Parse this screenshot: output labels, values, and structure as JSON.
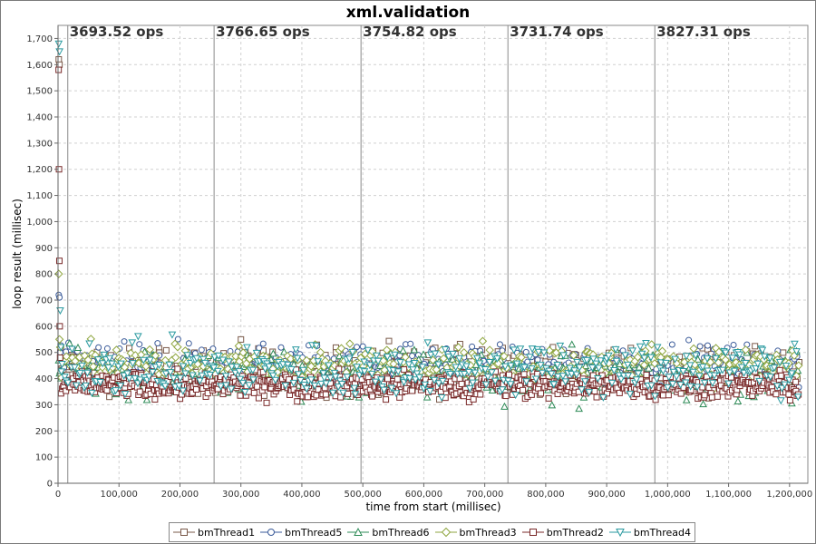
{
  "chart_data": {
    "type": "scatter",
    "title": "xml.validation",
    "xlabel": "time from start (millisec)",
    "ylabel": "loop result (millisec)",
    "xlim": [
      0,
      1230000
    ],
    "ylim": [
      0,
      1750
    ],
    "x_ticks": [
      0,
      100000,
      200000,
      300000,
      400000,
      500000,
      600000,
      700000,
      800000,
      900000,
      1000000,
      1100000,
      1200000
    ],
    "x_tick_labels": [
      "0",
      "100,000",
      "200,000",
      "300,000",
      "400,000",
      "500,000",
      "600,000",
      "700,000",
      "800,000",
      "900,000",
      "1,000,000",
      "1,100,000",
      "1,200,000"
    ],
    "y_ticks": [
      0,
      100,
      200,
      300,
      400,
      500,
      600,
      700,
      800,
      900,
      1000,
      1100,
      1200,
      1300,
      1400,
      1500,
      1600,
      1700
    ],
    "y_tick_labels": [
      "0",
      "100",
      "200",
      "300",
      "400",
      "500",
      "600",
      "700",
      "800",
      "900",
      "1,000",
      "1,100",
      "1,200",
      "1,300",
      "1,400",
      "1,500",
      "1,600",
      "1,700"
    ],
    "grid": true,
    "legend_position": "bottom",
    "phase_markers": [
      {
        "x": 16000,
        "label": "3693.52 ops"
      },
      {
        "x": 256000,
        "label": "3766.65 ops"
      },
      {
        "x": 497000,
        "label": "3754.82 ops"
      },
      {
        "x": 738000,
        "label": "3731.74 ops"
      },
      {
        "x": 979000,
        "label": "3827.31 ops"
      }
    ],
    "series": [
      {
        "name": "bmThread1",
        "marker": "square",
        "color": "#7a5a4a",
        "startup": [
          [
            1200,
            1620
          ],
          [
            2400,
            1600
          ],
          [
            3600,
            500
          ],
          [
            4800,
            520
          ]
        ],
        "band": [
          300,
          560
        ],
        "x_range": [
          5000,
          1215000
        ],
        "step": 2000
      },
      {
        "name": "bmThread5",
        "marker": "circle",
        "color": "#3a5a99",
        "startup": [
          [
            1200,
            720
          ],
          [
            2400,
            710
          ],
          [
            3600,
            500
          ],
          [
            4800,
            480
          ]
        ],
        "band": [
          330,
          570
        ],
        "x_range": [
          5000,
          1215000
        ],
        "step": 2800
      },
      {
        "name": "bmThread6",
        "marker": "triangle-up",
        "color": "#2e8b57",
        "startup": [
          [
            1200,
            470
          ],
          [
            2400,
            420
          ],
          [
            3600,
            430
          ]
        ],
        "band": [
          270,
          560
        ],
        "x_range": [
          5000,
          1215000
        ],
        "step": 3000
      },
      {
        "name": "bmThread3",
        "marker": "diamond",
        "color": "#8fa640",
        "startup": [
          [
            1200,
            800
          ],
          [
            2400,
            550
          ],
          [
            3600,
            520
          ]
        ],
        "band": [
          340,
          560
        ],
        "x_range": [
          5000,
          1215000
        ],
        "step": 3000
      },
      {
        "name": "bmThread2",
        "marker": "square",
        "color": "#7a2a2a",
        "startup": [
          [
            1000,
            1580
          ],
          [
            1600,
            1200
          ],
          [
            2200,
            850
          ],
          [
            2800,
            600
          ],
          [
            3400,
            480
          ]
        ],
        "band": [
          300,
          450
        ],
        "x_range": [
          5000,
          1215000
        ],
        "step": 1500
      },
      {
        "name": "bmThread4",
        "marker": "triangle-down",
        "color": "#2a9aa0",
        "startup": [
          [
            1200,
            1680
          ],
          [
            2400,
            1650
          ],
          [
            3600,
            660
          ],
          [
            4800,
            520
          ]
        ],
        "band": [
          280,
          580
        ],
        "x_range": [
          5000,
          1215000
        ],
        "step": 3200
      }
    ]
  }
}
